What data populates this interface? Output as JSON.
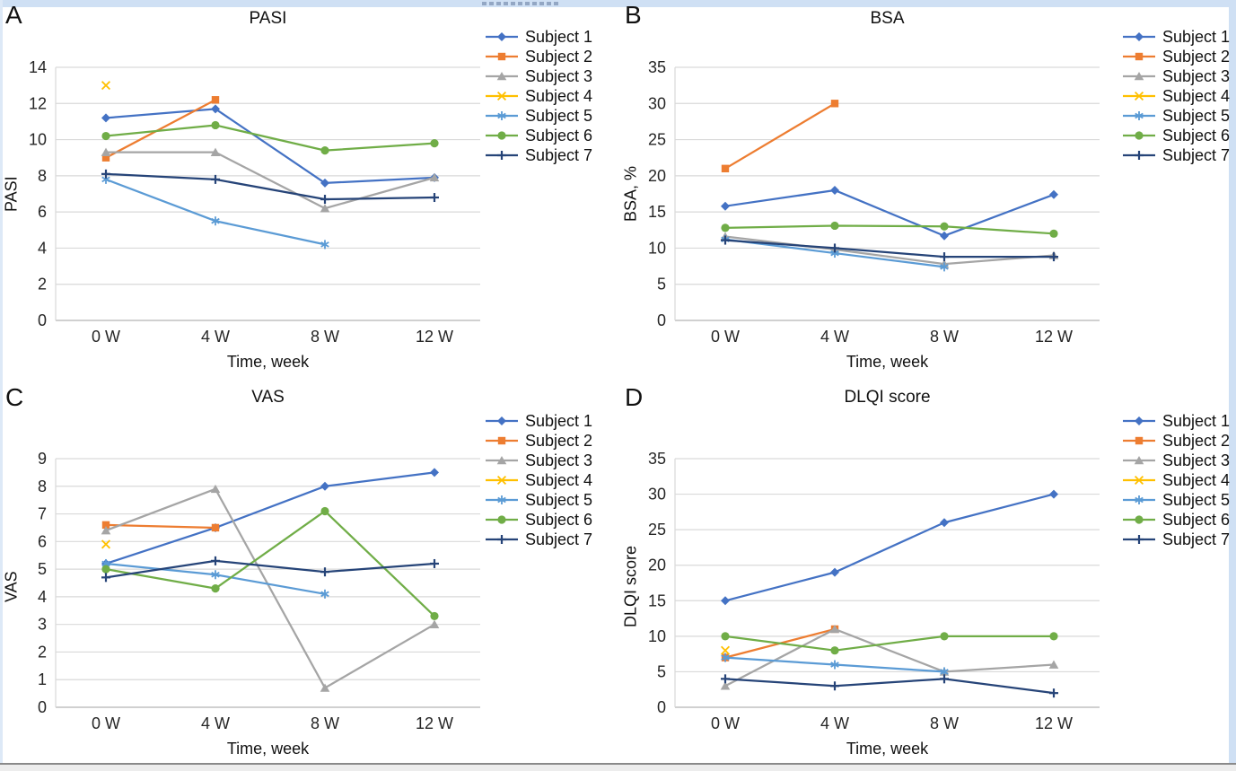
{
  "chart_data": [
    {
      "type": "line",
      "panel_letter": "A",
      "title": "PASI",
      "xlabel": "Time, week",
      "ylabel": "PASI",
      "categories": [
        "0 W",
        "4 W",
        "8 W",
        "12 W"
      ],
      "ylim": [
        0,
        14
      ],
      "yticks": [
        "0",
        "2",
        "4",
        "6",
        "8",
        "10",
        "12",
        "14"
      ],
      "grid": true,
      "legend_position": "right",
      "series": [
        {
          "name": "Subject 1",
          "color": "#4472C4",
          "marker": "diamond",
          "values": [
            11.2,
            11.7,
            7.6,
            7.9
          ]
        },
        {
          "name": "Subject 2",
          "color": "#ED7D31",
          "marker": "square",
          "values": [
            9.0,
            12.2,
            null,
            null
          ]
        },
        {
          "name": "Subject 3",
          "color": "#A5A5A5",
          "marker": "triangle",
          "values": [
            9.3,
            9.3,
            6.2,
            7.9
          ]
        },
        {
          "name": "Subject 4",
          "color": "#FFC000",
          "marker": "x",
          "values": [
            13.0,
            null,
            null,
            null
          ]
        },
        {
          "name": "Subject 5",
          "color": "#5B9BD5",
          "marker": "asterisk",
          "values": [
            7.8,
            5.5,
            4.2,
            null
          ]
        },
        {
          "name": "Subject 6",
          "color": "#70AD47",
          "marker": "circle",
          "values": [
            10.2,
            10.8,
            9.4,
            9.8
          ]
        },
        {
          "name": "Subject 7",
          "color": "#264478",
          "marker": "plus",
          "values": [
            8.1,
            7.8,
            6.7,
            6.8
          ]
        }
      ]
    },
    {
      "type": "line",
      "panel_letter": "B",
      "title": "BSA",
      "xlabel": "Time, week",
      "ylabel": "BSA, %",
      "categories": [
        "0 W",
        "4 W",
        "8 W",
        "12 W"
      ],
      "ylim": [
        0,
        35
      ],
      "yticks": [
        "0",
        "5",
        "10",
        "15",
        "20",
        "25",
        "30",
        "35"
      ],
      "grid": true,
      "legend_position": "right",
      "series": [
        {
          "name": "Subject 1",
          "color": "#4472C4",
          "marker": "diamond",
          "values": [
            15.8,
            18.0,
            11.7,
            17.4
          ]
        },
        {
          "name": "Subject 2",
          "color": "#ED7D31",
          "marker": "square",
          "values": [
            21.0,
            30.0,
            null,
            null
          ]
        },
        {
          "name": "Subject 3",
          "color": "#A5A5A5",
          "marker": "triangle",
          "values": [
            11.6,
            9.8,
            7.8,
            9.0
          ]
        },
        {
          "name": "Subject 4",
          "color": "#FFC000",
          "marker": "x",
          "values": [
            null,
            null,
            null,
            null
          ]
        },
        {
          "name": "Subject 5",
          "color": "#5B9BD5",
          "marker": "asterisk",
          "values": [
            11.2,
            9.3,
            7.4,
            null
          ]
        },
        {
          "name": "Subject 6",
          "color": "#70AD47",
          "marker": "circle",
          "values": [
            12.8,
            13.1,
            13.0,
            12.0
          ]
        },
        {
          "name": "Subject 7",
          "color": "#264478",
          "marker": "plus",
          "values": [
            11.1,
            10.0,
            8.8,
            8.8
          ]
        }
      ]
    },
    {
      "type": "line",
      "panel_letter": "C",
      "title": "VAS",
      "xlabel": "Time, week",
      "ylabel": "VAS",
      "categories": [
        "0 W",
        "4 W",
        "8 W",
        "12 W"
      ],
      "ylim": [
        0,
        9
      ],
      "yticks": [
        "0",
        "1",
        "2",
        "3",
        "4",
        "5",
        "6",
        "7",
        "8",
        "9"
      ],
      "grid": true,
      "legend_position": "right",
      "series": [
        {
          "name": "Subject 1",
          "color": "#4472C4",
          "marker": "diamond",
          "values": [
            5.2,
            6.5,
            8.0,
            8.5
          ]
        },
        {
          "name": "Subject 2",
          "color": "#ED7D31",
          "marker": "square",
          "values": [
            6.6,
            6.5,
            null,
            null
          ]
        },
        {
          "name": "Subject 3",
          "color": "#A5A5A5",
          "marker": "triangle",
          "values": [
            6.4,
            7.9,
            0.7,
            3.0
          ]
        },
        {
          "name": "Subject 4",
          "color": "#FFC000",
          "marker": "x",
          "values": [
            5.9,
            null,
            null,
            null
          ]
        },
        {
          "name": "Subject 5",
          "color": "#5B9BD5",
          "marker": "asterisk",
          "values": [
            5.2,
            4.8,
            4.1,
            null
          ]
        },
        {
          "name": "Subject 6",
          "color": "#70AD47",
          "marker": "circle",
          "values": [
            5.0,
            4.3,
            7.1,
            3.3
          ]
        },
        {
          "name": "Subject 7",
          "color": "#264478",
          "marker": "plus",
          "values": [
            4.7,
            5.3,
            4.9,
            5.2
          ]
        }
      ]
    },
    {
      "type": "line",
      "panel_letter": "D",
      "title": "DLQI score",
      "xlabel": "Time, week",
      "ylabel": "DLQI score",
      "categories": [
        "0 W",
        "4 W",
        "8 W",
        "12 W"
      ],
      "ylim": [
        0,
        35
      ],
      "yticks": [
        "0",
        "5",
        "10",
        "15",
        "20",
        "25",
        "30",
        "35"
      ],
      "grid": true,
      "legend_position": "right",
      "series": [
        {
          "name": "Subject 1",
          "color": "#4472C4",
          "marker": "diamond",
          "values": [
            15,
            19,
            26,
            30
          ]
        },
        {
          "name": "Subject 2",
          "color": "#ED7D31",
          "marker": "square",
          "values": [
            7,
            11,
            null,
            null
          ]
        },
        {
          "name": "Subject 3",
          "color": "#A5A5A5",
          "marker": "triangle",
          "values": [
            3,
            11,
            5,
            6
          ]
        },
        {
          "name": "Subject 4",
          "color": "#FFC000",
          "marker": "x",
          "values": [
            8,
            null,
            null,
            null
          ]
        },
        {
          "name": "Subject 5",
          "color": "#5B9BD5",
          "marker": "asterisk",
          "values": [
            7,
            6,
            5,
            null
          ]
        },
        {
          "name": "Subject 6",
          "color": "#70AD47",
          "marker": "circle",
          "values": [
            10,
            8,
            10,
            10
          ]
        },
        {
          "name": "Subject 7",
          "color": "#264478",
          "marker": "plus",
          "values": [
            4,
            3,
            4,
            2
          ]
        }
      ]
    }
  ]
}
